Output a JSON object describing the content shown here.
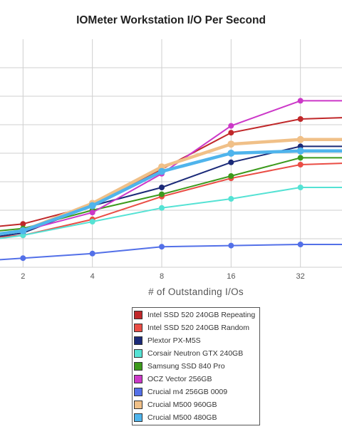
{
  "chart_data": {
    "type": "line",
    "title": "IOMeter Workstation I/O Per Second",
    "xlabel": "# of Outstanding I/Os",
    "ylabel": "",
    "x_scale": "log2",
    "x": [
      1,
      2,
      4,
      8,
      16,
      32,
      64
    ],
    "x_ticks": [
      "2",
      "4",
      "8",
      "16",
      "32"
    ],
    "legend_position": "bottom",
    "grid": true,
    "series": [
      {
        "name": "Intel SSD 520 240GB Repeating",
        "color": "#c0282a",
        "values": [
          0.16,
          0.19,
          0.27,
          0.43,
          0.59,
          0.65,
          0.66
        ]
      },
      {
        "name": "Intel SSD 520 240GB Random",
        "color": "#ea4d45",
        "values": [
          0.12,
          0.14,
          0.21,
          0.31,
          0.39,
          0.45,
          0.46
        ]
      },
      {
        "name": "Plextor PX-M5S",
        "color": "#1b2a78",
        "values": [
          0.11,
          0.15,
          0.27,
          0.35,
          0.46,
          0.53,
          0.53
        ]
      },
      {
        "name": "Corsair Neutron GTX 240GB",
        "color": "#55e2d4",
        "values": [
          0.1,
          0.14,
          0.2,
          0.26,
          0.3,
          0.35,
          0.35
        ]
      },
      {
        "name": "Samsung SSD 840 Pro",
        "color": "#3c9a1c",
        "values": [
          0.14,
          0.17,
          0.25,
          0.32,
          0.4,
          0.48,
          0.48
        ]
      },
      {
        "name": "OCZ Vector 256GB",
        "color": "#cc38c8",
        "values": [
          0.13,
          0.16,
          0.24,
          0.41,
          0.62,
          0.73,
          0.73
        ]
      },
      {
        "name": "Crucial m4 256GB 0009",
        "color": "#5370e8",
        "values": [
          0.02,
          0.04,
          0.06,
          0.09,
          0.095,
          0.1,
          0.1
        ]
      },
      {
        "name": "Crucial M500 960GB",
        "color": "#f0c088",
        "values": [
          0.12,
          0.16,
          0.28,
          0.44,
          0.54,
          0.56,
          0.56
        ]
      },
      {
        "name": "Crucial M500 480GB",
        "color": "#4fb4ec",
        "values": [
          0.12,
          0.16,
          0.27,
          0.42,
          0.5,
          0.51,
          0.51
        ]
      }
    ]
  }
}
